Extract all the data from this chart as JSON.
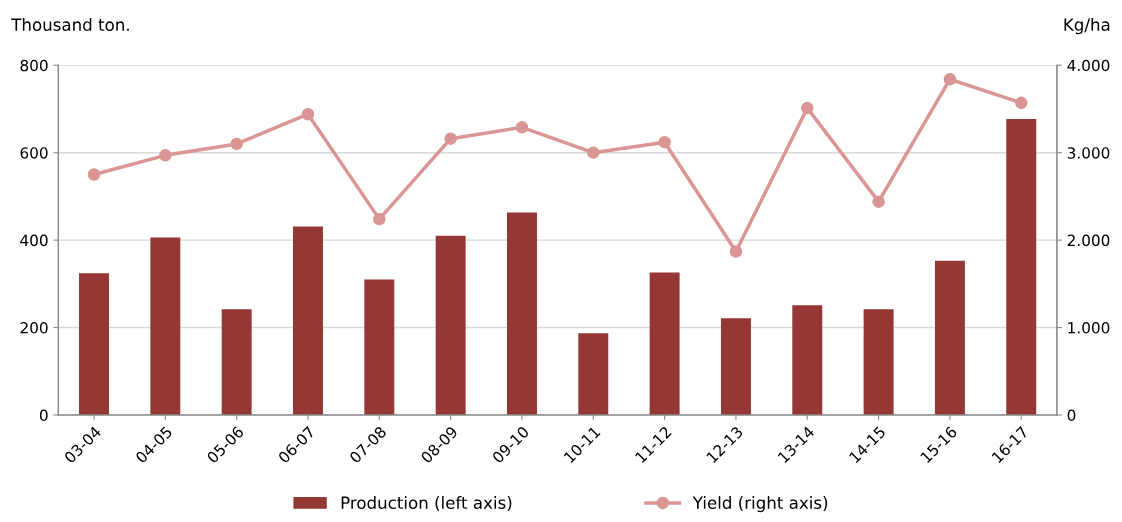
{
  "chart_data": {
    "type": "bar",
    "ylabel": "Thousand ton.",
    "y2label": "Kg/ha",
    "categories": [
      "03-04",
      "04-05",
      "05-06",
      "06-07",
      "07-08",
      "08-09",
      "09-10",
      "10-11",
      "11-12",
      "12-13",
      "13-14",
      "14-15",
      "15-16",
      "16-17"
    ],
    "series": [
      {
        "name": "Production (left axis)",
        "color": "#953735",
        "values": [
          324,
          406,
          242,
          431,
          310,
          410,
          463,
          187,
          326,
          221,
          251,
          242,
          353,
          677
        ]
      },
      {
        "name": "Yield (right axis)",
        "type": "line",
        "axis": "y2",
        "color": "#d99694",
        "marker": "circle",
        "values": [
          2750,
          2970,
          3100,
          3440,
          2240,
          3160,
          3290,
          3000,
          3120,
          1870,
          3510,
          2440,
          3840,
          3570
        ]
      }
    ],
    "ylim": [
      0,
      800
    ],
    "yticks": [
      0,
      200,
      400,
      600,
      800
    ],
    "y2lim": [
      0,
      4000
    ],
    "y2ticks": [
      0,
      {
        "value": 1000,
        "label": "1.000"
      },
      {
        "value": 2000,
        "label": "2.000"
      },
      {
        "value": 3000,
        "label": "3.000"
      },
      {
        "value": 4000,
        "label": "4.000"
      }
    ],
    "grid": "y",
    "legend": "bottom"
  }
}
